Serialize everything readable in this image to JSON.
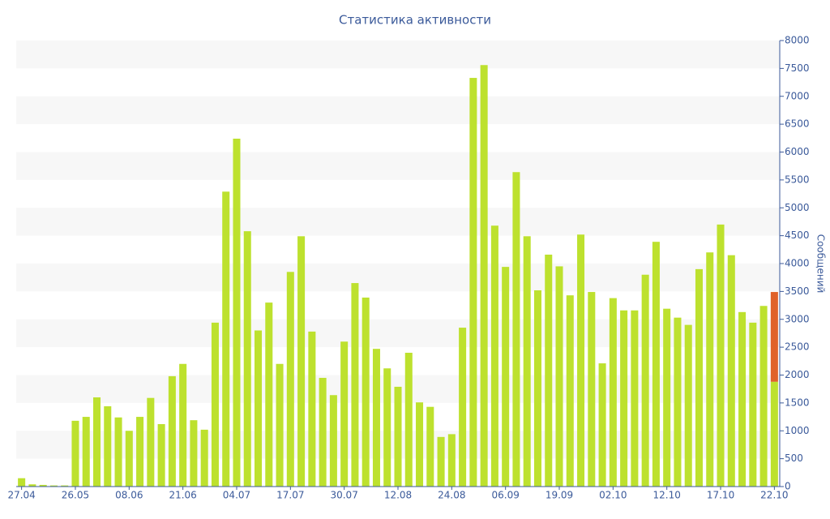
{
  "chart_data": {
    "type": "bar",
    "title": "Статистика активности",
    "y_label": "Сообщений",
    "categories": [
      "27.04",
      null,
      null,
      null,
      null,
      "26.05",
      null,
      null,
      null,
      null,
      "08.06",
      null,
      null,
      null,
      null,
      "21.06",
      null,
      null,
      null,
      null,
      "04.07",
      null,
      null,
      null,
      null,
      "17.07",
      null,
      null,
      null,
      null,
      "30.07",
      null,
      null,
      null,
      null,
      "12.08",
      null,
      null,
      null,
      null,
      "24.08",
      null,
      null,
      null,
      null,
      "06.09",
      null,
      null,
      null,
      null,
      "19.09",
      null,
      null,
      null,
      null,
      "02.10",
      null,
      null,
      null,
      null,
      "12.10",
      null,
      null,
      null,
      null,
      "17.10",
      null,
      null,
      null,
      null,
      "22.10"
    ],
    "series": [
      {
        "color": "#bde12e",
        "values": [
          150,
          40,
          30,
          20,
          20,
          1180,
          1250,
          1600,
          1440,
          1240,
          1000,
          1250,
          1590,
          1120,
          1980,
          2200,
          1190,
          1020,
          2940,
          5290,
          6240,
          4580,
          2800,
          3300,
          2200,
          3850,
          4490,
          2780,
          1950,
          1640,
          2600,
          3650,
          3390,
          2470,
          2120,
          1790,
          2400,
          1510,
          1430,
          890,
          940,
          2850,
          7330,
          7560,
          4680,
          3940,
          5640,
          4490,
          3520,
          4160,
          3950,
          3430,
          4520,
          3490,
          2210,
          3380,
          3160,
          3160,
          3800,
          4390,
          3190,
          3030,
          2900,
          3900,
          4200,
          4700,
          4150,
          3130,
          2940,
          3240,
          1880
        ]
      },
      {
        "color": "#e0622a",
        "values": [
          null,
          null,
          null,
          null,
          null,
          null,
          null,
          null,
          null,
          null,
          null,
          null,
          null,
          null,
          null,
          null,
          null,
          null,
          null,
          null,
          null,
          null,
          null,
          null,
          null,
          null,
          null,
          null,
          null,
          null,
          null,
          null,
          null,
          null,
          null,
          null,
          null,
          null,
          null,
          null,
          null,
          null,
          null,
          null,
          null,
          null,
          null,
          null,
          null,
          null,
          null,
          null,
          null,
          null,
          null,
          null,
          null,
          null,
          null,
          null,
          null,
          null,
          null,
          null,
          null,
          null,
          null,
          null,
          null,
          null,
          1610
        ]
      }
    ],
    "ylim": [
      0,
      8000
    ],
    "yticks": [
      0,
      500,
      1000,
      1500,
      2000,
      2500,
      3000,
      3500,
      4000,
      4500,
      5000,
      5500,
      6000,
      6500,
      7000,
      7500,
      8000
    ],
    "y_axis_side": "right",
    "grid_bands": true
  }
}
